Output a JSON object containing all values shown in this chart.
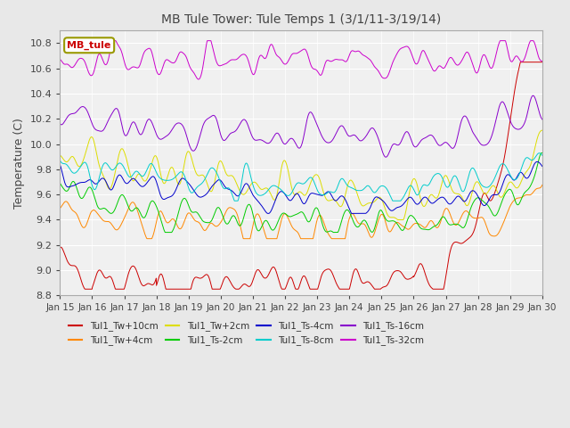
{
  "title": "MB Tule Tower: Tule Temps 1 (3/1/11-3/19/14)",
  "ylabel": "Temperature (C)",
  "ylim": [
    8.8,
    10.9
  ],
  "xlim": [
    0,
    15
  ],
  "xtick_labels": [
    "Jan 15",
    "Jan 16",
    "Jan 17",
    "Jan 18",
    "Jan 19",
    "Jan 20",
    "Jan 21",
    "Jan 22",
    "Jan 23",
    "Jan 24",
    "Jan 25",
    "Jan 26",
    "Jan 27",
    "Jan 28",
    "Jan 29",
    "Jan 30"
  ],
  "ytick_values": [
    8.8,
    9.0,
    9.2,
    9.4,
    9.6,
    9.8,
    10.0,
    10.2,
    10.4,
    10.6,
    10.8
  ],
  "series": [
    {
      "label": "Tul1_Tw+10cm",
      "color": "#cc0000"
    },
    {
      "label": "Tul1_Tw+4cm",
      "color": "#ff8800"
    },
    {
      "label": "Tul1_Tw+2cm",
      "color": "#dddd00"
    },
    {
      "label": "Tul1_Ts-2cm",
      "color": "#00cc00"
    },
    {
      "label": "Tul1_Ts-4cm",
      "color": "#0000cc"
    },
    {
      "label": "Tul1_Ts-8cm",
      "color": "#00cccc"
    },
    {
      "label": "Tul1_Ts-16cm",
      "color": "#8800cc"
    },
    {
      "label": "Tul1_Ts-32cm",
      "color": "#cc00cc"
    }
  ],
  "legend_label": "MB_tule",
  "legend_color": "#cc0000",
  "bg_color": "#e8e8e8",
  "plot_bg": "#f0f0f0"
}
